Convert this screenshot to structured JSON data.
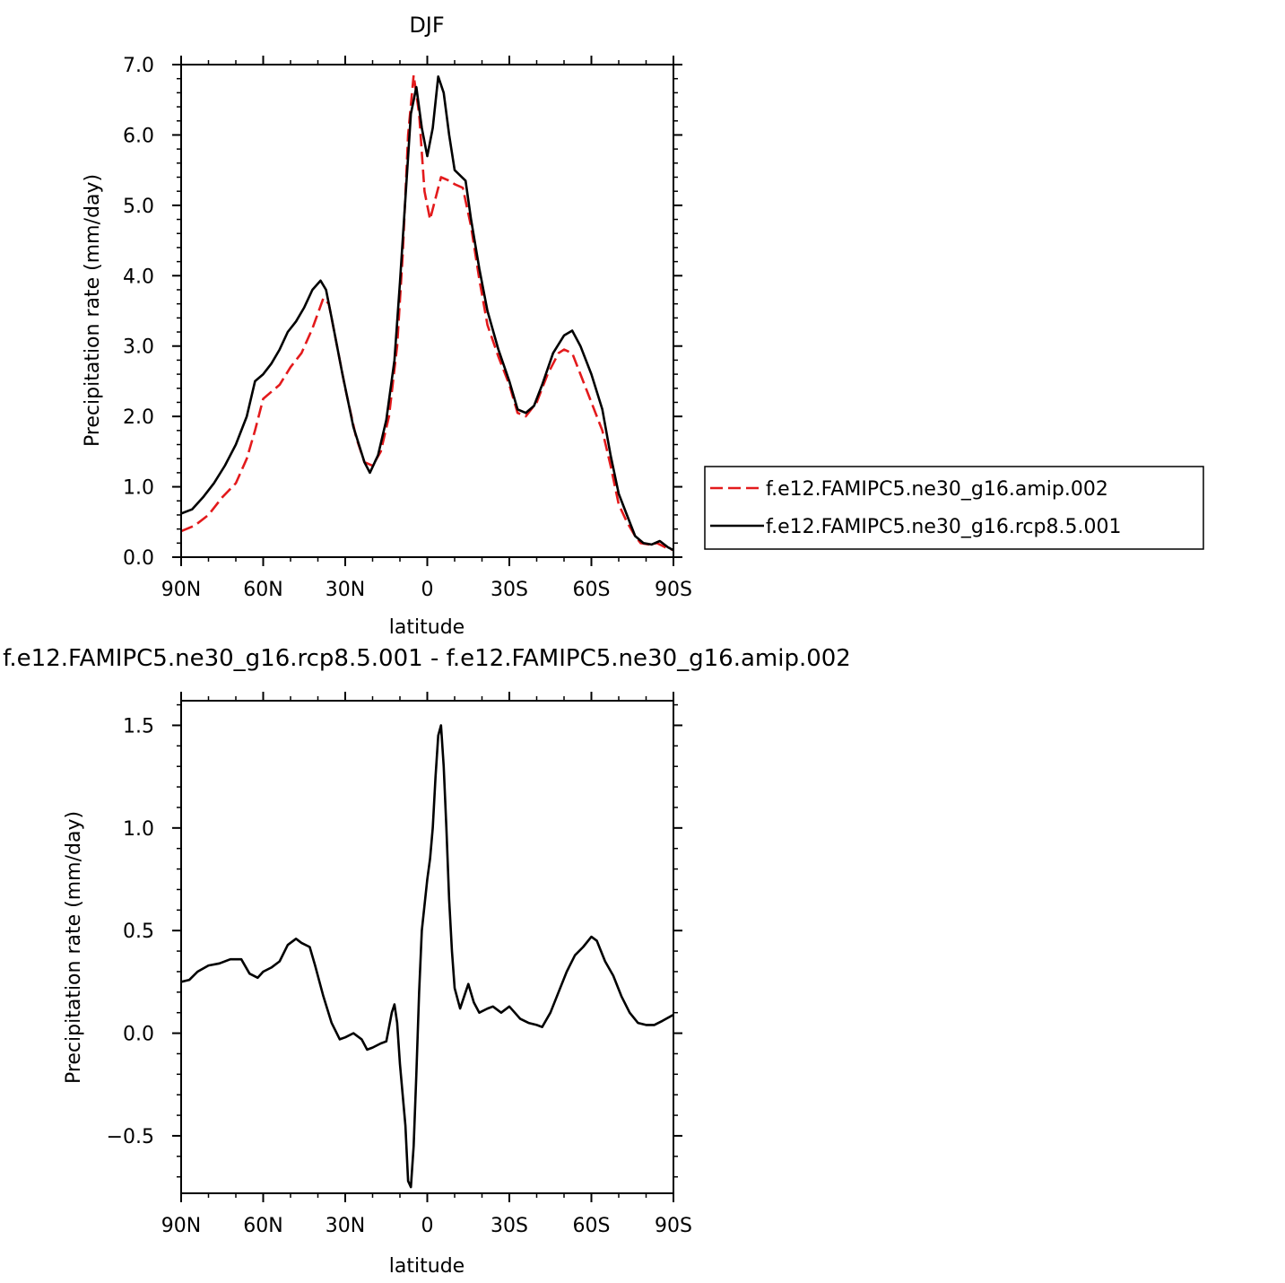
{
  "chart_data": [
    {
      "type": "line",
      "title": "DJF",
      "xlabel": "latitude",
      "ylabel": "Precipitation rate (mm/day)",
      "xlim": [
        -90,
        90
      ],
      "ylim": [
        0,
        7
      ],
      "x_ticks": [
        -90,
        -60,
        -30,
        0,
        30,
        60,
        90
      ],
      "x_tick_labels": [
        "90N",
        "60N",
        "30N",
        "0",
        "30S",
        "60S",
        "90S"
      ],
      "y_ticks": [
        0,
        1,
        2,
        3,
        4,
        5,
        6,
        7
      ],
      "y_tick_labels": [
        "0.0",
        "1.0",
        "2.0",
        "3.0",
        "4.0",
        "5.0",
        "6.0",
        "7.0"
      ],
      "grid": false,
      "legend_position": "right",
      "series": [
        {
          "name": "f.e12.FAMIPC5.ne30_g16.amip.002",
          "color": "#e31a1c",
          "dash": "dashed",
          "points": [
            [
              -90,
              0.37
            ],
            [
              -85,
              0.45
            ],
            [
              -80,
              0.6
            ],
            [
              -75,
              0.85
            ],
            [
              -70,
              1.05
            ],
            [
              -66,
              1.4
            ],
            [
              -63,
              1.8
            ],
            [
              -60,
              2.25
            ],
            [
              -57,
              2.35
            ],
            [
              -54,
              2.45
            ],
            [
              -50,
              2.7
            ],
            [
              -46,
              2.9
            ],
            [
              -42,
              3.25
            ],
            [
              -38,
              3.68
            ],
            [
              -36,
              3.6
            ],
            [
              -34,
              3.2
            ],
            [
              -30,
              2.4
            ],
            [
              -26,
              1.7
            ],
            [
              -23,
              1.35
            ],
            [
              -20,
              1.3
            ],
            [
              -17,
              1.5
            ],
            [
              -14,
              2.0
            ],
            [
              -11,
              3.0
            ],
            [
              -9,
              4.3
            ],
            [
              -7,
              6.0
            ],
            [
              -5,
              6.85
            ],
            [
              -3,
              6.3
            ],
            [
              -1,
              5.2
            ],
            [
              1,
              4.8
            ],
            [
              3,
              5.1
            ],
            [
              5,
              5.4
            ],
            [
              8,
              5.35
            ],
            [
              10,
              5.3
            ],
            [
              13,
              5.25
            ],
            [
              16,
              4.7
            ],
            [
              19,
              3.95
            ],
            [
              22,
              3.3
            ],
            [
              26,
              2.85
            ],
            [
              30,
              2.45
            ],
            [
              33,
              2.05
            ],
            [
              36,
              2.0
            ],
            [
              40,
              2.2
            ],
            [
              44,
              2.6
            ],
            [
              48,
              2.9
            ],
            [
              50,
              2.95
            ],
            [
              53,
              2.9
            ],
            [
              56,
              2.6
            ],
            [
              60,
              2.2
            ],
            [
              64,
              1.8
            ],
            [
              67,
              1.3
            ],
            [
              70,
              0.75
            ],
            [
              73,
              0.5
            ],
            [
              76,
              0.3
            ],
            [
              78,
              0.2
            ],
            [
              81,
              0.18
            ],
            [
              84,
              0.2
            ],
            [
              87,
              0.14
            ],
            [
              90,
              0.1
            ]
          ]
        },
        {
          "name": "f.e12.FAMIPC5.ne30_g16.rcp8.5.001",
          "color": "#000000",
          "dash": "solid",
          "points": [
            [
              -90,
              0.62
            ],
            [
              -86,
              0.68
            ],
            [
              -82,
              0.85
            ],
            [
              -78,
              1.05
            ],
            [
              -74,
              1.3
            ],
            [
              -70,
              1.6
            ],
            [
              -66,
              2.0
            ],
            [
              -63,
              2.5
            ],
            [
              -60,
              2.6
            ],
            [
              -57,
              2.75
            ],
            [
              -54,
              2.95
            ],
            [
              -51,
              3.2
            ],
            [
              -48,
              3.35
            ],
            [
              -45,
              3.55
            ],
            [
              -42,
              3.8
            ],
            [
              -39,
              3.93
            ],
            [
              -37,
              3.8
            ],
            [
              -35,
              3.4
            ],
            [
              -31,
              2.6
            ],
            [
              -27,
              1.85
            ],
            [
              -23,
              1.35
            ],
            [
              -21,
              1.2
            ],
            [
              -18,
              1.45
            ],
            [
              -15,
              1.95
            ],
            [
              -12,
              2.8
            ],
            [
              -10,
              3.9
            ],
            [
              -8,
              5.1
            ],
            [
              -6,
              6.3
            ],
            [
              -4,
              6.68
            ],
            [
              -2,
              6.1
            ],
            [
              0,
              5.7
            ],
            [
              2,
              6.1
            ],
            [
              4,
              6.83
            ],
            [
              6,
              6.6
            ],
            [
              8,
              6.0
            ],
            [
              10,
              5.5
            ],
            [
              14,
              5.35
            ],
            [
              16,
              4.8
            ],
            [
              19,
              4.1
            ],
            [
              22,
              3.5
            ],
            [
              26,
              2.95
            ],
            [
              30,
              2.5
            ],
            [
              33,
              2.1
            ],
            [
              36,
              2.05
            ],
            [
              39,
              2.15
            ],
            [
              42,
              2.45
            ],
            [
              46,
              2.9
            ],
            [
              50,
              3.15
            ],
            [
              53,
              3.22
            ],
            [
              56,
              3.0
            ],
            [
              60,
              2.6
            ],
            [
              64,
              2.1
            ],
            [
              67,
              1.45
            ],
            [
              70,
              0.9
            ],
            [
              73,
              0.6
            ],
            [
              76,
              0.3
            ],
            [
              79,
              0.2
            ],
            [
              82,
              0.18
            ],
            [
              85,
              0.23
            ],
            [
              88,
              0.14
            ],
            [
              90,
              0.1
            ]
          ]
        }
      ]
    },
    {
      "type": "line",
      "title": "f.e12.FAMIPC5.ne30_g16.rcp8.5.001 - f.e12.FAMIPC5.ne30_g16.amip.002",
      "xlabel": "latitude",
      "ylabel": "Precipitation rate (mm/day)",
      "xlim": [
        -90,
        90
      ],
      "ylim": [
        -0.78,
        1.62
      ],
      "x_ticks": [
        -90,
        -60,
        -30,
        0,
        30,
        60,
        90
      ],
      "x_tick_labels": [
        "90N",
        "60N",
        "30N",
        "0",
        "30S",
        "60S",
        "90S"
      ],
      "y_ticks": [
        -0.5,
        0,
        0.5,
        1,
        1.5
      ],
      "y_tick_labels": [
        "−0.5",
        "0.0",
        "0.5",
        "1.0",
        "1.5"
      ],
      "grid": false,
      "series": [
        {
          "color": "#000000",
          "dash": "solid",
          "points": [
            [
              -90,
              0.25
            ],
            [
              -87,
              0.26
            ],
            [
              -84,
              0.3
            ],
            [
              -80,
              0.33
            ],
            [
              -76,
              0.34
            ],
            [
              -72,
              0.36
            ],
            [
              -68,
              0.36
            ],
            [
              -65,
              0.29
            ],
            [
              -62,
              0.27
            ],
            [
              -60,
              0.3
            ],
            [
              -57,
              0.32
            ],
            [
              -54,
              0.35
            ],
            [
              -51,
              0.43
            ],
            [
              -48,
              0.46
            ],
            [
              -46,
              0.44
            ],
            [
              -43,
              0.42
            ],
            [
              -41,
              0.33
            ],
            [
              -38,
              0.18
            ],
            [
              -35,
              0.05
            ],
            [
              -32,
              -0.03
            ],
            [
              -30,
              -0.02
            ],
            [
              -27,
              0.0
            ],
            [
              -24,
              -0.03
            ],
            [
              -22,
              -0.08
            ],
            [
              -20,
              -0.07
            ],
            [
              -17,
              -0.05
            ],
            [
              -15,
              -0.04
            ],
            [
              -13,
              0.1
            ],
            [
              -12,
              0.14
            ],
            [
              -11,
              0.05
            ],
            [
              -10,
              -0.15
            ],
            [
              -8,
              -0.45
            ],
            [
              -7,
              -0.72
            ],
            [
              -6,
              -0.75
            ],
            [
              -5,
              -0.55
            ],
            [
              -4,
              -0.2
            ],
            [
              -3,
              0.2
            ],
            [
              -2,
              0.5
            ],
            [
              0,
              0.75
            ],
            [
              1,
              0.85
            ],
            [
              2,
              1.0
            ],
            [
              3,
              1.25
            ],
            [
              4,
              1.45
            ],
            [
              5,
              1.5
            ],
            [
              6,
              1.3
            ],
            [
              7,
              1.0
            ],
            [
              8,
              0.65
            ],
            [
              9,
              0.4
            ],
            [
              10,
              0.22
            ],
            [
              12,
              0.12
            ],
            [
              14,
              0.2
            ],
            [
              15,
              0.24
            ],
            [
              17,
              0.15
            ],
            [
              19,
              0.1
            ],
            [
              22,
              0.12
            ],
            [
              24,
              0.13
            ],
            [
              27,
              0.1
            ],
            [
              30,
              0.13
            ],
            [
              32,
              0.1
            ],
            [
              34,
              0.07
            ],
            [
              37,
              0.05
            ],
            [
              40,
              0.04
            ],
            [
              42,
              0.03
            ],
            [
              45,
              0.1
            ],
            [
              48,
              0.2
            ],
            [
              51,
              0.3
            ],
            [
              54,
              0.38
            ],
            [
              57,
              0.42
            ],
            [
              60,
              0.47
            ],
            [
              62,
              0.45
            ],
            [
              65,
              0.35
            ],
            [
              68,
              0.28
            ],
            [
              71,
              0.18
            ],
            [
              74,
              0.1
            ],
            [
              77,
              0.05
            ],
            [
              80,
              0.04
            ],
            [
              83,
              0.04
            ],
            [
              86,
              0.06
            ],
            [
              90,
              0.09
            ]
          ]
        }
      ]
    }
  ]
}
